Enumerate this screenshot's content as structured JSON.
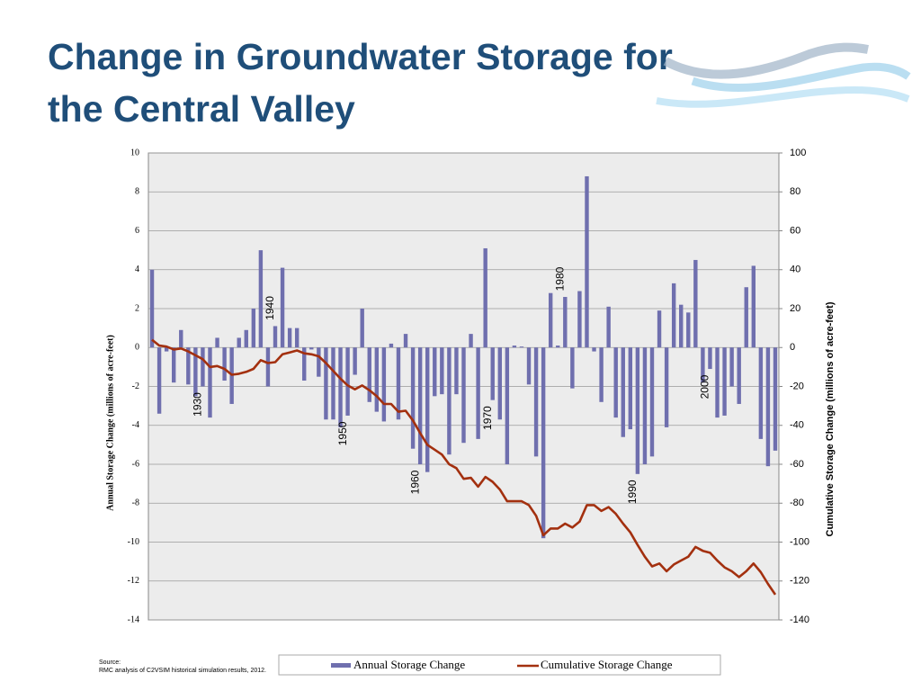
{
  "chart_data": {
    "type": "bar",
    "title": "Change in Groundwater Storage for the Central Valley",
    "ylabel": "Annual Storage Change (millions of acre-feet)",
    "y2label": "Cumulative Storage Change (millions of acre-feet)",
    "source": [
      "Source:",
      "RMC analysis of C2VSIM historical simulation results, 2012."
    ],
    "categories": [
      null,
      null,
      null,
      null,
      null,
      null,
      null,
      "1930",
      null,
      null,
      null,
      null,
      null,
      null,
      null,
      null,
      null,
      "1940",
      null,
      null,
      null,
      null,
      null,
      null,
      null,
      null,
      null,
      "1950",
      null,
      null,
      null,
      null,
      null,
      null,
      null,
      null,
      null,
      "1960",
      null,
      null,
      null,
      null,
      null,
      null,
      null,
      null,
      null,
      "1970",
      null,
      null,
      null,
      null,
      null,
      null,
      null,
      null,
      null,
      "1980",
      null,
      null,
      null,
      null,
      null,
      null,
      null,
      null,
      null,
      "1990",
      null,
      null,
      null,
      null,
      null,
      null,
      null,
      null,
      null,
      "2000",
      null,
      null,
      null,
      null,
      null,
      null,
      null,
      null,
      null
    ],
    "series": [
      {
        "name": "Annual Storage Change",
        "type": "bar",
        "color": "#6f6fae",
        "values": [
          4.0,
          -3.4,
          -0.2,
          -1.8,
          0.9,
          -1.9,
          -2.5,
          -2.0,
          -3.6,
          0.5,
          -1.7,
          -2.9,
          0.5,
          0.9,
          2.0,
          5.0,
          -2.0,
          1.1,
          4.1,
          1.0,
          1.0,
          -1.7,
          -0.1,
          -1.5,
          -3.7,
          -3.7,
          -4.1,
          -3.5,
          -1.4,
          2.0,
          -2.8,
          -3.3,
          -3.8,
          0.2,
          -3.7,
          0.7,
          -5.2,
          -6.0,
          -6.4,
          -2.5,
          -2.4,
          -5.5,
          -2.4,
          -4.9,
          0.7,
          -4.7,
          5.1,
          -2.7,
          -3.7,
          -6.0,
          0.1,
          0.05,
          -1.9,
          -5.6,
          -9.8,
          2.8,
          0.1,
          2.6,
          -2.1,
          2.9,
          8.8,
          -0.2,
          -2.8,
          2.1,
          -3.6,
          -4.6,
          -4.2,
          -6.5,
          -6.0,
          -5.6,
          1.9,
          -4.1,
          3.3,
          2.2,
          1.8,
          4.5,
          -1.8,
          -1.1,
          -3.6,
          -3.5,
          -2.0,
          -2.9,
          3.1,
          4.2,
          -4.7,
          -6.1,
          -5.3
        ]
      },
      {
        "name": "Cumulative Storage Change",
        "type": "line",
        "axis": "y2",
        "color": "#a3300f",
        "values": [
          4,
          1,
          0.5,
          -1,
          -0.5,
          -2,
          -4,
          -6,
          -10,
          -9.5,
          -11,
          -14,
          -13.5,
          -12.5,
          -11,
          -6.5,
          -8,
          -7.5,
          -3.5,
          -2.5,
          -1.5,
          -3,
          -3.5,
          -4.5,
          -8,
          -12,
          -16,
          -19.5,
          -21.5,
          -19.5,
          -22,
          -25,
          -29,
          -29,
          -33,
          -32.5,
          -37.5,
          -44,
          -50,
          -52.5,
          -55,
          -60,
          -62,
          -67.5,
          -67,
          -71.5,
          -66.5,
          -69,
          -73,
          -79,
          -79,
          -79,
          -81,
          -86.5,
          -96.5,
          -93,
          -93,
          -90.5,
          -92.5,
          -89.5,
          -81,
          -81,
          -84,
          -82,
          -85.5,
          -90.5,
          -95,
          -101.5,
          -107.5,
          -112.5,
          -111,
          -115,
          -111.5,
          -109.5,
          -107.5,
          -102.5,
          -104.5,
          -105.5,
          -109.5,
          -113,
          -115,
          -118,
          -115,
          -111,
          -115.5,
          -121.5,
          -127
        ]
      }
    ],
    "ylim": [
      -14,
      10
    ],
    "yticks": [
      -14,
      -12,
      -10,
      -8,
      -6,
      -4,
      -2,
      0,
      2,
      4,
      6,
      8,
      10
    ],
    "y2lim": [
      -140,
      100
    ],
    "y2ticks": [
      -140,
      -120,
      -100,
      -80,
      -60,
      -40,
      -20,
      0,
      20,
      40,
      60,
      80,
      100
    ],
    "grid": true
  }
}
